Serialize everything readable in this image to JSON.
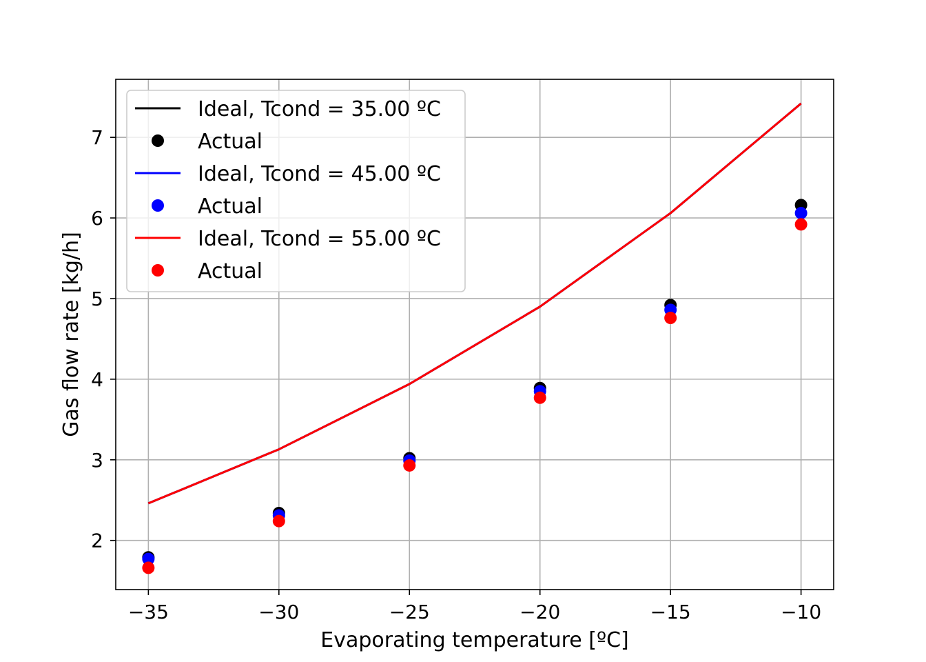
{
  "chart_data": {
    "type": "line",
    "xlabel": "Evaporating temperature [ºC]",
    "ylabel": "Gas flow rate [kg/h]",
    "xlim": [
      -36.25,
      -8.75
    ],
    "ylim": [
      1.39,
      7.72
    ],
    "xticks": [
      -35,
      -30,
      -25,
      -20,
      -15,
      -10
    ],
    "xtick_labels": [
      "−35",
      "−30",
      "−25",
      "−20",
      "−15",
      "−10"
    ],
    "yticks": [
      2,
      3,
      4,
      5,
      6,
      7
    ],
    "ytick_labels": [
      "2",
      "3",
      "4",
      "5",
      "6",
      "7"
    ],
    "grid": true,
    "legend_position": "upper-left",
    "x": [
      -35,
      -30,
      -25,
      -20,
      -15,
      -10
    ],
    "series": [
      {
        "name": "Ideal, Tcond = 35.00 ºC",
        "kind": "line",
        "color": "#000000",
        "values": [
          2.46,
          3.13,
          3.94,
          4.9,
          6.06,
          7.42
        ]
      },
      {
        "name": "Actual",
        "kind": "markers",
        "color": "#000000",
        "values": [
          1.79,
          2.34,
          3.02,
          3.89,
          4.92,
          6.16
        ]
      },
      {
        "name": "Ideal, Tcond = 45.00 ºC",
        "kind": "line",
        "color": "#0000ff",
        "values": [
          2.46,
          3.13,
          3.94,
          4.9,
          6.06,
          7.42
        ]
      },
      {
        "name": "Actual",
        "kind": "markers",
        "color": "#0000ff",
        "values": [
          1.77,
          2.31,
          2.99,
          3.85,
          4.86,
          6.06
        ]
      },
      {
        "name": "Ideal, Tcond = 55.00 ºC",
        "kind": "line",
        "color": "#ff0000",
        "values": [
          2.46,
          3.13,
          3.94,
          4.9,
          6.06,
          7.42
        ]
      },
      {
        "name": "Actual",
        "kind": "markers",
        "color": "#ff0000",
        "values": [
          1.66,
          2.24,
          2.93,
          3.77,
          4.76,
          5.92
        ]
      }
    ]
  }
}
